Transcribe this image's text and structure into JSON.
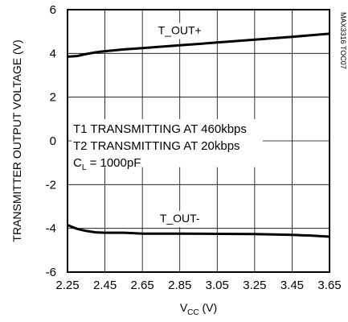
{
  "chart_data": {
    "type": "line",
    "xlabel": "V",
    "xlabel_sub": "CC",
    "xlabel_unit": " (V)",
    "ylabel": "TRANSMITTER OUTPUT VOLTAGE (V)",
    "xlim": [
      2.25,
      3.65
    ],
    "ylim": [
      -6,
      6
    ],
    "x_ticks": [
      2.25,
      2.45,
      2.65,
      2.85,
      3.05,
      3.25,
      3.45,
      3.65
    ],
    "x_tick_labels": [
      "2.25",
      "2.45",
      "2.65",
      "2.85",
      "3.05",
      "3.25",
      "3.45",
      "3.65"
    ],
    "y_ticks": [
      6,
      4,
      2,
      0,
      -2,
      -4,
      -6
    ],
    "y_tick_labels": [
      "6",
      "4",
      "2",
      "0",
      "-2",
      "-4",
      "-6"
    ],
    "grid": true,
    "legend": "none",
    "annotations": [
      "T1 TRANSMITTING AT 460kbps",
      "T2 TRANSMITTING AT 20kbps"
    ],
    "cl_annotation": {
      "main": "C",
      "sub": "L",
      "rest": " = 1000pF"
    },
    "code_label": "MAX3316 TOC07",
    "series": [
      {
        "name": "T_OUT+",
        "x": [
          2.25,
          2.3,
          2.35,
          2.4,
          2.45,
          2.55,
          2.65,
          2.85,
          3.05,
          3.25,
          3.45,
          3.65
        ],
        "y": [
          3.85,
          3.88,
          3.97,
          4.05,
          4.1,
          4.18,
          4.24,
          4.37,
          4.5,
          4.63,
          4.76,
          4.9
        ]
      },
      {
        "name": "T_OUT-",
        "x": [
          2.25,
          2.3,
          2.35,
          2.4,
          2.45,
          2.55,
          2.6,
          2.65,
          2.85,
          3.05,
          3.25,
          3.45,
          3.55,
          3.65
        ],
        "y": [
          -3.85,
          -4.02,
          -4.12,
          -4.18,
          -4.2,
          -4.2,
          -4.22,
          -4.24,
          -4.24,
          -4.25,
          -4.26,
          -4.3,
          -4.33,
          -4.38
        ]
      }
    ]
  }
}
